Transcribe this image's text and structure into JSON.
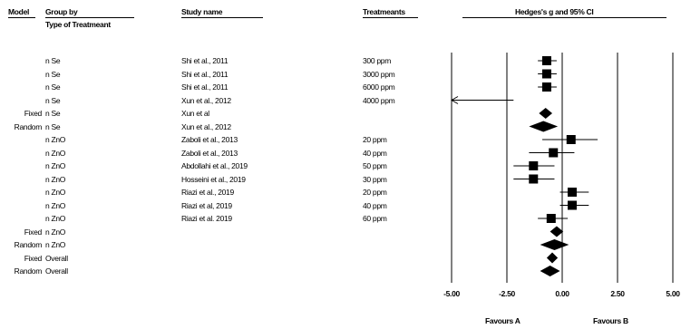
{
  "headers": {
    "model": "Model",
    "group_by": "Group by",
    "group_sub": "Type of Treatmeant",
    "study": "Study name",
    "treatments": "Treatmeants",
    "effect": "Hedges's g and 95% CI"
  },
  "favours": {
    "left": "Favours A",
    "right": "Favours B"
  },
  "chart_data": {
    "type": "forest",
    "xlim": [
      -5,
      5
    ],
    "ticks": [
      -5,
      -2.5,
      0,
      2.5,
      5
    ],
    "tick_labels": [
      "-5.00",
      "-2.50",
      "0.00",
      "2.50",
      "5.00"
    ],
    "rows": [
      {
        "model": "",
        "group": "n Se",
        "study": "Shi et al., 2011",
        "treatment": "300 ppm",
        "kind": "study",
        "g": -0.7,
        "lo": -1.1,
        "hi": -0.25
      },
      {
        "model": "",
        "group": "n Se",
        "study": "Shi et al., 2011",
        "treatment": "3000 ppm",
        "kind": "study",
        "g": -0.7,
        "lo": -1.1,
        "hi": -0.25
      },
      {
        "model": "",
        "group": "n Se",
        "study": "Shi et al., 2011",
        "treatment": "6000 ppm",
        "kind": "study",
        "g": -0.7,
        "lo": -1.1,
        "hi": -0.25
      },
      {
        "model": "",
        "group": "n Se",
        "study": "Xun et al., 2012",
        "treatment": "4000 ppm",
        "kind": "study",
        "g": null,
        "lo": -5,
        "hi": -2.2,
        "arrow_left": true
      },
      {
        "model": "Fixed",
        "group": "n Se",
        "study": "Xun et al",
        "treatment": "",
        "kind": "summary",
        "g": -0.75,
        "lo": -1.05,
        "hi": -0.45
      },
      {
        "model": "Random",
        "group": "n Se",
        "study": "Xun et al., 2012",
        "treatment": "",
        "kind": "summary",
        "g": -0.85,
        "lo": -1.5,
        "hi": -0.2
      },
      {
        "model": "",
        "group": "n ZnO",
        "study": "Zaboli et al., 2013",
        "treatment": "20 ppm",
        "kind": "study",
        "g": 0.4,
        "lo": -0.9,
        "hi": 1.6
      },
      {
        "model": "",
        "group": "n ZnO",
        "study": "Zaboli et al., 2013",
        "treatment": "40 ppm",
        "kind": "study",
        "g": -0.4,
        "lo": -1.5,
        "hi": 0.55
      },
      {
        "model": "",
        "group": "n ZnO",
        "study": "Abdollahi et al., 2019",
        "treatment": "50 ppm",
        "kind": "study",
        "g": -1.3,
        "lo": -2.2,
        "hi": -0.35
      },
      {
        "model": "",
        "group": "n ZnO",
        "study": "Hosseini et al., 2019",
        "treatment": "30 ppm",
        "kind": "study",
        "g": -1.3,
        "lo": -2.2,
        "hi": -0.35
      },
      {
        "model": "",
        "group": "n ZnO",
        "study": "Riazi et al., 2019",
        "treatment": "20 ppm",
        "kind": "study",
        "g": 0.45,
        "lo": -0.1,
        "hi": 1.2
      },
      {
        "model": "",
        "group": "n ZnO",
        "study": "Riazi et al, 2019",
        "treatment": "40 ppm",
        "kind": "study",
        "g": 0.45,
        "lo": -0.1,
        "hi": 1.2
      },
      {
        "model": "",
        "group": "n ZnO",
        "study": "Riazi et al. 2019",
        "treatment": "60 ppm",
        "kind": "study",
        "g": -0.5,
        "lo": -1.1,
        "hi": 0.25
      },
      {
        "model": "Fixed",
        "group": "n ZnO",
        "study": "",
        "treatment": "",
        "kind": "summary",
        "g": -0.25,
        "lo": -0.55,
        "hi": 0.05
      },
      {
        "model": "Random",
        "group": "n ZnO",
        "study": "",
        "treatment": "",
        "kind": "summary",
        "g": -0.35,
        "lo": -1.0,
        "hi": 0.3
      },
      {
        "model": "Fixed",
        "group": "Overall",
        "study": "",
        "treatment": "",
        "kind": "summary",
        "g": -0.45,
        "lo": -0.7,
        "hi": -0.2
      },
      {
        "model": "Random",
        "group": "Overall",
        "study": "",
        "treatment": "",
        "kind": "summary",
        "g": -0.55,
        "lo": -1.0,
        "hi": -0.1
      }
    ]
  }
}
